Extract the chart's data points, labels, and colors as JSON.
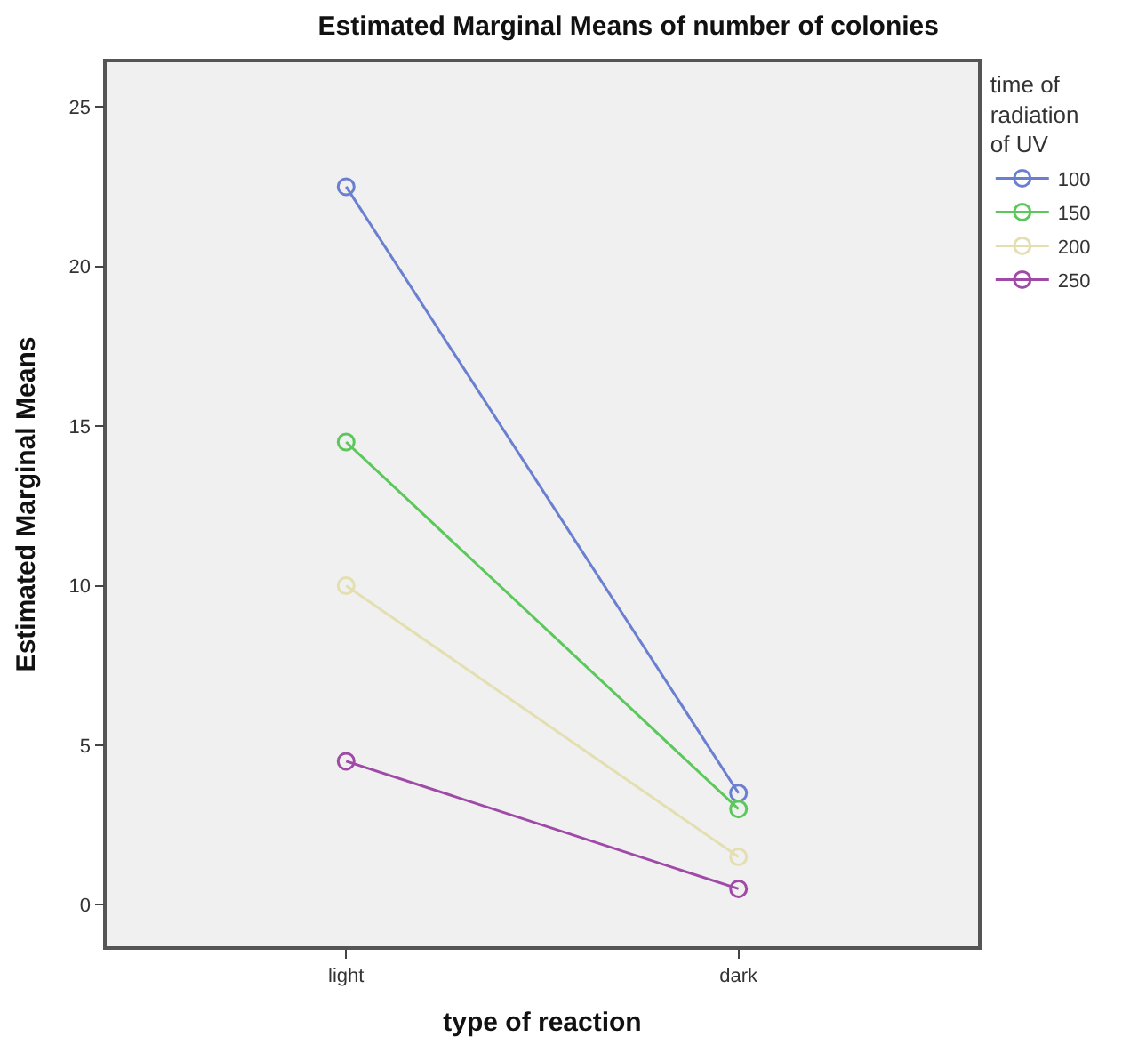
{
  "chart_data": {
    "type": "line",
    "title": "Estimated Marginal Means of number of colonies",
    "xlabel": "type of reaction",
    "ylabel": "Estimated Marginal Means",
    "legend_title": "time of\nradiation\nof UV",
    "categories": [
      "light",
      "dark"
    ],
    "series": [
      {
        "name": "100",
        "color": "#6b7fd0",
        "values": [
          22.5,
          3.5
        ]
      },
      {
        "name": "150",
        "color": "#5cc85c",
        "values": [
          14.5,
          3.0
        ]
      },
      {
        "name": "200",
        "color": "#e3dfb0",
        "values": [
          10.0,
          1.5
        ]
      },
      {
        "name": "250",
        "color": "#a04aa8",
        "values": [
          4.5,
          0.5
        ]
      }
    ],
    "ylim": [
      -1.3,
      26.4
    ],
    "yticks": [
      0,
      5,
      10,
      15,
      20,
      25
    ],
    "grid": false,
    "legend": "right",
    "marker": "circle",
    "line_style": "solid"
  }
}
